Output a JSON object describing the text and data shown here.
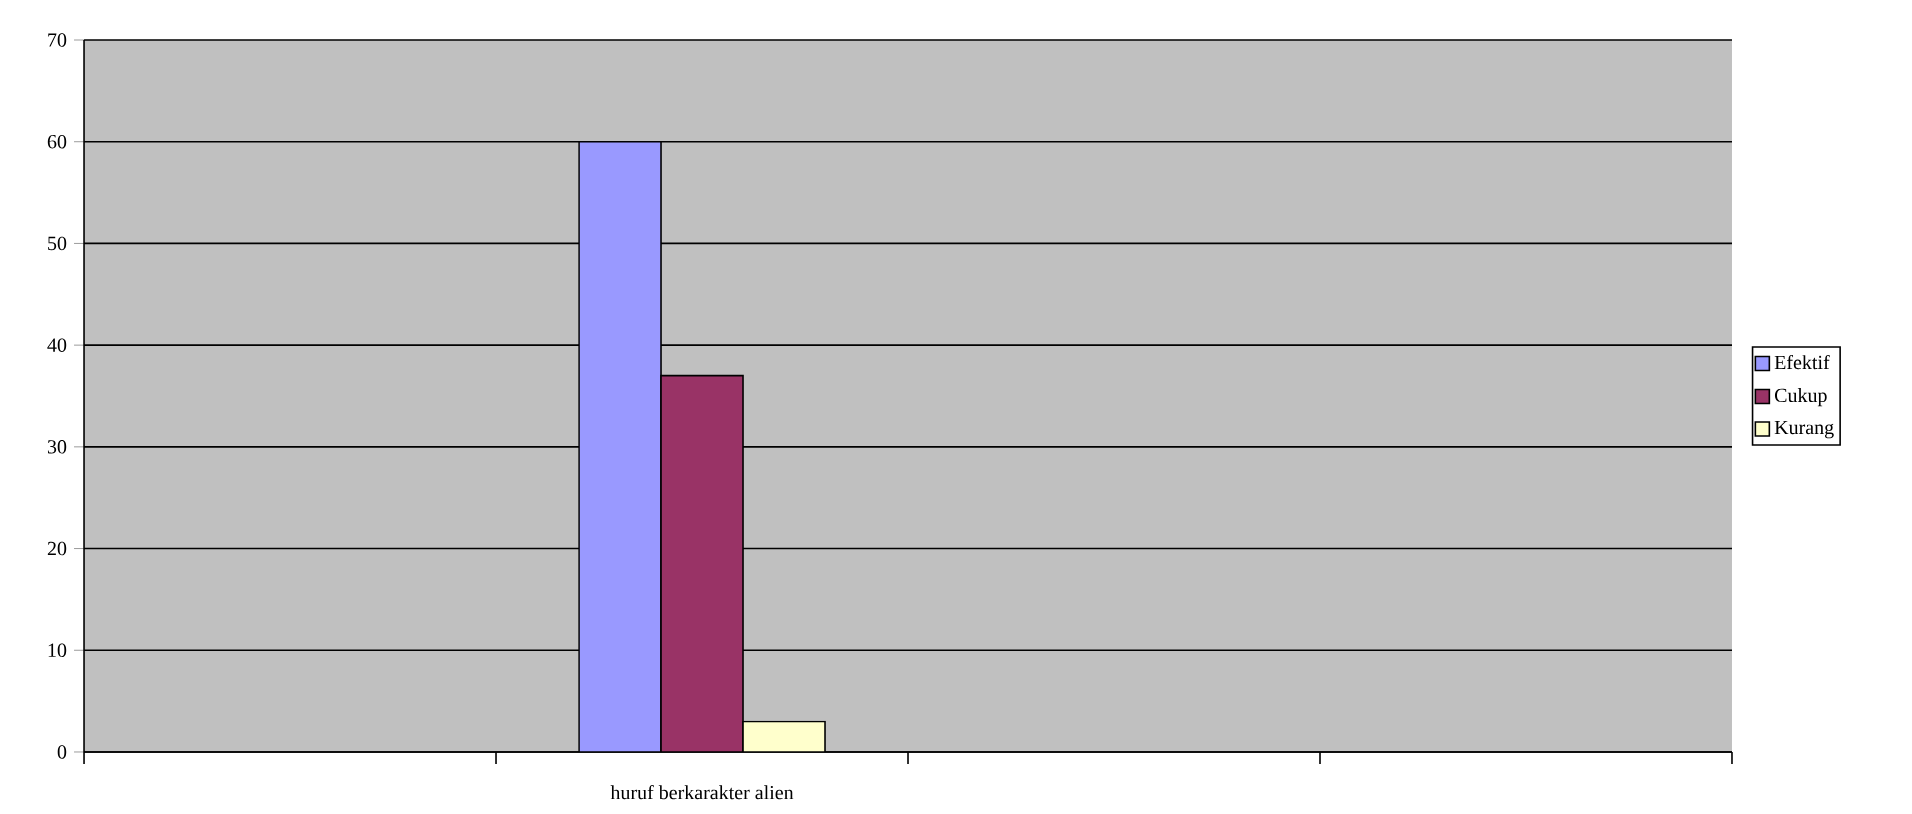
{
  "chart_data": {
    "type": "bar",
    "categories": [
      null,
      "huruf berkarakter alien",
      null,
      null
    ],
    "series": [
      {
        "name": "Efektif",
        "color": "#9999ff",
        "values": [
          null,
          60,
          null,
          null
        ]
      },
      {
        "name": "Cukup",
        "color": "#993366",
        "values": [
          null,
          37,
          null,
          null
        ]
      },
      {
        "name": "Kurang",
        "color": "#ffffcc",
        "values": [
          null,
          3,
          null,
          null
        ]
      }
    ],
    "ylim": [
      0,
      70
    ],
    "yticks": [
      0,
      10,
      20,
      30,
      40,
      50,
      60,
      70
    ],
    "grid": "y",
    "legend": "right"
  }
}
